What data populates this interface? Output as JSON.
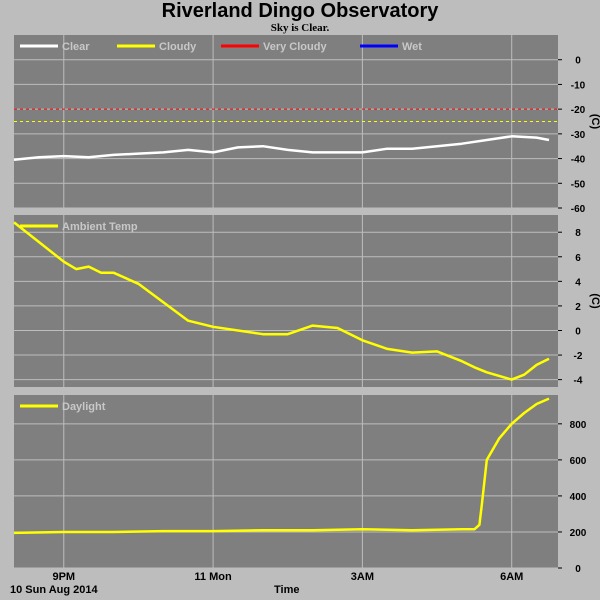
{
  "header": {
    "title": "Riverland Dingo Observatory",
    "subtitle": "Sky is Clear."
  },
  "footer": {
    "date": "10 Sun Aug 2014",
    "time_label": "Time"
  },
  "colors": {
    "background": "#bdbdbd",
    "plot_bg": "#7f7f7f",
    "clear": "#ffffff",
    "cloudy": "#ffff00",
    "very_cloudy": "#ff0000",
    "wet": "#0000ff",
    "grid": "#bdbdbd"
  },
  "chart_data": [
    {
      "type": "line",
      "id": "sky",
      "ylabel": "(C)",
      "ylim": [
        -60,
        10
      ],
      "yticks": [
        0,
        -10,
        -20,
        -30,
        -40,
        -50,
        -60
      ],
      "legend": [
        {
          "name": "Clear",
          "color": "#ffffff"
        },
        {
          "name": "Cloudy",
          "color": "#ffff00"
        },
        {
          "name": "Very Cloudy",
          "color": "#ff0000"
        },
        {
          "name": "Wet",
          "color": "#0000ff"
        }
      ],
      "thresholds": [
        {
          "value": -20,
          "color": "#ff0000"
        },
        {
          "value": -25,
          "color": "#ffff00"
        }
      ],
      "series": [
        {
          "name": "Clear",
          "color": "#ffffff",
          "x": [
            20.0,
            20.5,
            21.0,
            21.5,
            22.0,
            22.5,
            23.0,
            23.5,
            24.0,
            24.5,
            25.0,
            25.5,
            26.0,
            26.5,
            27.0,
            27.5,
            28.0,
            28.5,
            29.0,
            29.5,
            30.0,
            30.5,
            30.75
          ],
          "y": [
            -40.5,
            -39.5,
            -39,
            -39.5,
            -38.5,
            -38,
            -37.5,
            -36.5,
            -37.5,
            -35.5,
            -35,
            -36.5,
            -37.5,
            -37.5,
            -37.5,
            -36,
            -36,
            -35,
            -34,
            -32.5,
            -31,
            -31.5,
            -32.5
          ]
        }
      ]
    },
    {
      "type": "line",
      "id": "ambient",
      "ylabel": "(C)",
      "ylim": [
        -4.6,
        9.4
      ],
      "yticks": [
        8,
        6,
        4,
        2,
        0,
        -2,
        -4
      ],
      "legend": [
        {
          "name": "Ambient Temp",
          "color": "#ffff00"
        }
      ],
      "series": [
        {
          "name": "Ambient Temp",
          "color": "#ffff00",
          "x": [
            20.0,
            20.5,
            21.0,
            21.25,
            21.5,
            21.75,
            22.0,
            22.5,
            23.0,
            23.5,
            24.0,
            24.5,
            25.0,
            25.5,
            26.0,
            26.5,
            27.0,
            27.5,
            28.0,
            28.5,
            29.0,
            29.25,
            29.5,
            30.0,
            30.25,
            30.5,
            30.75
          ],
          "y": [
            8.8,
            7.2,
            5.6,
            5.0,
            5.2,
            4.7,
            4.7,
            3.8,
            2.3,
            0.8,
            0.3,
            0.0,
            -0.3,
            -0.3,
            0.4,
            0.2,
            -0.8,
            -1.5,
            -1.8,
            -1.7,
            -2.5,
            -3.0,
            -3.4,
            -4.0,
            -3.6,
            -2.8,
            -2.3
          ]
        }
      ]
    },
    {
      "type": "line",
      "id": "daylight",
      "ylabel": "",
      "ylim": [
        0,
        960
      ],
      "yticks": [
        800,
        600,
        400,
        200,
        0
      ],
      "xticks": [
        {
          "value": 21,
          "label": "9PM"
        },
        {
          "value": 24,
          "label": "11 Mon"
        },
        {
          "value": 27,
          "label": "3AM"
        },
        {
          "value": 30,
          "label": "6AM"
        }
      ],
      "legend": [
        {
          "name": "Daylight",
          "color": "#ffff00"
        }
      ],
      "series": [
        {
          "name": "Daylight",
          "color": "#ffff00",
          "x": [
            20.0,
            21.0,
            22.0,
            23.0,
            24.0,
            25.0,
            26.0,
            27.0,
            28.0,
            29.0,
            29.25,
            29.35,
            29.4,
            29.5,
            29.75,
            30.0,
            30.25,
            30.5,
            30.75
          ],
          "y": [
            195,
            200,
            200,
            205,
            205,
            210,
            210,
            215,
            210,
            215,
            215,
            240,
            350,
            600,
            720,
            800,
            860,
            910,
            940
          ]
        }
      ]
    }
  ]
}
